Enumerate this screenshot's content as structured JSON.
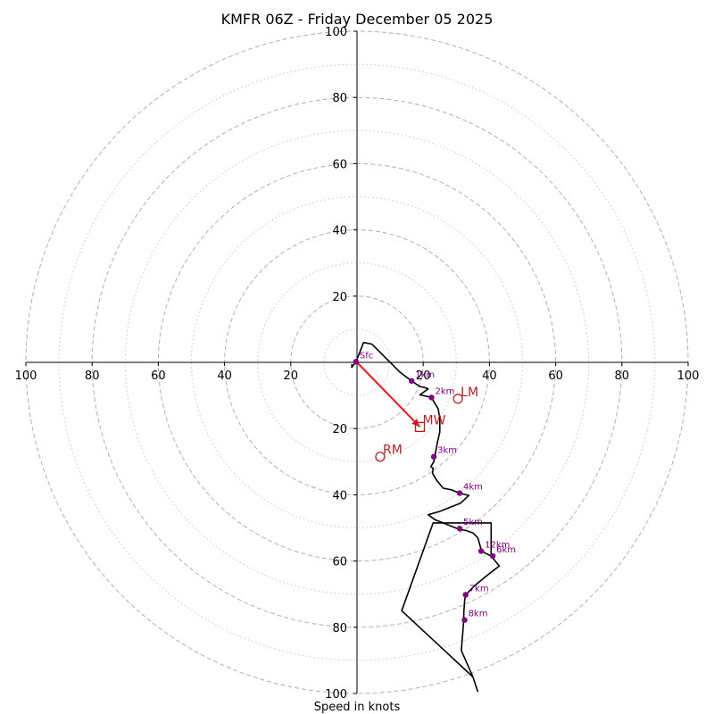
{
  "chart_data": {
    "type": "line",
    "title": "KMFR 06Z - Friday December 05 2025",
    "xlabel": "Speed in knots",
    "ylabel": "",
    "xlim": [
      -100,
      100
    ],
    "ylim": [
      -100,
      100
    ],
    "major_rings": [
      20,
      40,
      60,
      80,
      100
    ],
    "minor_rings": [
      10,
      30,
      50,
      70,
      90
    ],
    "x_ticks": [
      {
        "value": -100,
        "label": "100"
      },
      {
        "value": -80,
        "label": "80"
      },
      {
        "value": -60,
        "label": "60"
      },
      {
        "value": -40,
        "label": "40"
      },
      {
        "value": -20,
        "label": "20"
      },
      {
        "value": 20,
        "label": "20"
      },
      {
        "value": 40,
        "label": "40"
      },
      {
        "value": 60,
        "label": "60"
      },
      {
        "value": 80,
        "label": "80"
      },
      {
        "value": 100,
        "label": "100"
      }
    ],
    "y_ticks": [
      {
        "value": 100,
        "label": "100"
      },
      {
        "value": 80,
        "label": "80"
      },
      {
        "value": 60,
        "label": "60"
      },
      {
        "value": 40,
        "label": "40"
      },
      {
        "value": 20,
        "label": "20"
      },
      {
        "value": -20,
        "label": "20"
      },
      {
        "value": -40,
        "label": "40"
      },
      {
        "value": -60,
        "label": "60"
      },
      {
        "value": -80,
        "label": "80"
      },
      {
        "value": -100,
        "label": "100"
      }
    ],
    "series": [
      {
        "name": "hodograph",
        "color": "#000000",
        "points": [
          [
            -1.5,
            -0.5
          ],
          [
            -1.6,
            -1.5
          ],
          [
            -0.3,
            0.2
          ],
          [
            2,
            6
          ],
          [
            4.5,
            5.5
          ],
          [
            9.5,
            0.5
          ],
          [
            13,
            -3
          ],
          [
            16.5,
            -5.6
          ],
          [
            19,
            -7.3
          ],
          [
            20,
            -7.5
          ],
          [
            21.5,
            -8
          ],
          [
            19,
            -9.8
          ],
          [
            22.5,
            -10.6
          ],
          [
            23,
            -11.5
          ],
          [
            24.5,
            -14
          ],
          [
            25,
            -17
          ],
          [
            25,
            -21
          ],
          [
            24.3,
            -24
          ],
          [
            23.5,
            -28.5
          ],
          [
            23.2,
            -30
          ],
          [
            22.3,
            -31.5
          ],
          [
            23,
            -32
          ],
          [
            22.8,
            -33.5
          ],
          [
            24,
            -35.5
          ],
          [
            26,
            -38
          ],
          [
            28.5,
            -38.5
          ],
          [
            31,
            -39.5
          ],
          [
            33.8,
            -40.2
          ],
          [
            31.3,
            -42.5
          ],
          [
            25,
            -45
          ],
          [
            21.5,
            -46
          ],
          [
            23.5,
            -47.5
          ],
          [
            26,
            -48.5
          ],
          [
            28,
            -49.3
          ],
          [
            30.5,
            -50.3
          ],
          [
            33,
            -50.8
          ],
          [
            35,
            -51.5
          ],
          [
            36.5,
            -53
          ],
          [
            37.5,
            -56.5
          ],
          [
            38.5,
            -57.5
          ],
          [
            40.5,
            -58.5
          ],
          [
            43,
            -61.5
          ],
          [
            41,
            -63
          ],
          [
            38.5,
            -65
          ],
          [
            35.5,
            -67.5
          ],
          [
            32.8,
            -70.2
          ],
          [
            32.5,
            -72
          ],
          [
            32.3,
            -75
          ],
          [
            32.2,
            -77.8
          ],
          [
            32,
            -81
          ],
          [
            31.5,
            -87
          ],
          [
            35,
            -95
          ],
          [
            36.5,
            -99.5
          ]
        ]
      },
      {
        "name": "outer-loop",
        "color": "#000000",
        "points": [
          [
            35,
            -95
          ],
          [
            13.5,
            -75
          ],
          [
            23,
            -48.5
          ],
          [
            40.5,
            -48.5
          ],
          [
            40.5,
            -58.5
          ]
        ]
      }
    ],
    "height_markers": [
      {
        "label": "Sfc",
        "x": -0.3,
        "y": 0.2
      },
      {
        "label": "1km",
        "x": 16.5,
        "y": -5.6
      },
      {
        "label": "2km",
        "x": 22.5,
        "y": -10.6
      },
      {
        "label": "3km",
        "x": 23.2,
        "y": -28.5
      },
      {
        "label": "4km",
        "x": 31,
        "y": -39.5
      },
      {
        "label": "5km",
        "x": 31,
        "y": -50.2
      },
      {
        "label": "12km",
        "x": 37.5,
        "y": -57
      },
      {
        "label": "6km",
        "x": 41,
        "y": -58.5
      },
      {
        "label": "7km",
        "x": 32.8,
        "y": -70.2
      },
      {
        "label": "8km",
        "x": 32.5,
        "y": -77.8
      }
    ],
    "storm_motion": [
      {
        "label": "LM",
        "symbol": "circle",
        "x": 30.5,
        "y": -11
      },
      {
        "label": "MW",
        "symbol": "square",
        "x": 19,
        "y": -19.5
      },
      {
        "label": "RM",
        "symbol": "circle",
        "x": 7,
        "y": -28.5
      }
    ],
    "storm_vector": {
      "from": [
        0,
        0
      ],
      "to": [
        19,
        -19.5
      ],
      "color": "#e31a1c"
    },
    "colors": {
      "line": "#000000",
      "marker": "#800080",
      "storm": "#b22222",
      "vector": "#e31a1c",
      "ring": "#b0b0b0"
    }
  }
}
